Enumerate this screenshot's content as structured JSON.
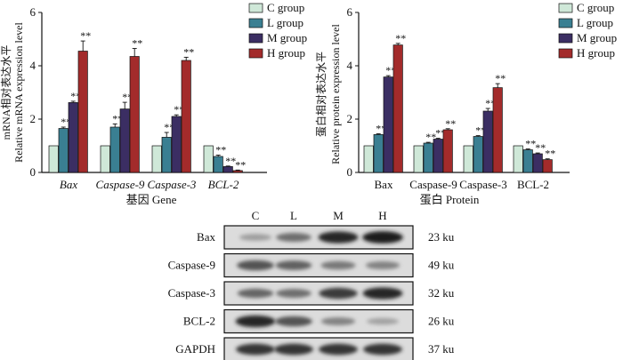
{
  "chart_data": [
    {
      "type": "bar",
      "ylabel_cn": "mRNA相对表达水平",
      "ylabel_en": "Relative mRNA expression level",
      "xlabel": "基因 Gene",
      "ylim": [
        0,
        6
      ],
      "yticks": [
        "0",
        "2",
        "4",
        "6"
      ],
      "categories": [
        "Bax",
        "Caspase-9",
        "Caspase-3",
        "BCL-2"
      ],
      "categories_italic": true,
      "series": [
        {
          "name": "C group",
          "values": [
            1.0,
            1.0,
            1.0,
            1.0
          ],
          "errors": [
            0,
            0,
            0,
            0
          ],
          "stars": [
            "",
            "",
            "",
            ""
          ]
        },
        {
          "name": "L group",
          "values": [
            1.65,
            1.7,
            1.32,
            0.6
          ],
          "errors": [
            0.05,
            0.12,
            0.18,
            0.05
          ],
          "stars": [
            "**",
            "**",
            "**",
            "**"
          ]
        },
        {
          "name": "M group",
          "values": [
            2.62,
            2.38,
            2.1,
            0.22
          ],
          "errors": [
            0.05,
            0.25,
            0.06,
            0.02
          ],
          "stars": [
            "**",
            "**",
            "**",
            "**"
          ]
        },
        {
          "name": "H group",
          "values": [
            4.55,
            4.35,
            4.2,
            0.07
          ],
          "errors": [
            0.38,
            0.3,
            0.12,
            0.02
          ],
          "stars": [
            "**",
            "**",
            "**",
            "**"
          ]
        }
      ]
    },
    {
      "type": "bar",
      "ylabel_cn": "蛋白相对表达水平",
      "ylabel_en": "Relative protein expression level",
      "xlabel": "蛋白 Protein",
      "ylim": [
        0,
        6
      ],
      "yticks": [
        "0",
        "2",
        "4",
        "6"
      ],
      "categories": [
        "Bax",
        "Caspase-9",
        "Caspase-3",
        "BCL-2"
      ],
      "categories_italic": false,
      "series": [
        {
          "name": "C group",
          "values": [
            1.0,
            1.0,
            1.0,
            1.0
          ],
          "errors": [
            0,
            0,
            0,
            0
          ],
          "stars": [
            "",
            "",
            "",
            ""
          ]
        },
        {
          "name": "L group",
          "values": [
            1.42,
            1.1,
            1.35,
            0.85
          ],
          "errors": [
            0.03,
            0.03,
            0.03,
            0.03
          ],
          "stars": [
            "**",
            "**",
            "**",
            "**"
          ]
        },
        {
          "name": "M group",
          "values": [
            3.58,
            1.25,
            2.3,
            0.7
          ],
          "errors": [
            0.05,
            0.03,
            0.1,
            0.03
          ],
          "stars": [
            "**",
            "**",
            "**",
            "**"
          ]
        },
        {
          "name": "H group",
          "values": [
            4.78,
            1.6,
            3.18,
            0.48
          ],
          "errors": [
            0.06,
            0.04,
            0.15,
            0.03
          ],
          "stars": [
            "**",
            "**",
            "**",
            "**"
          ]
        }
      ]
    }
  ],
  "series_colors": [
    "#cfe8d8",
    "#3a7f92",
    "#3b2e63",
    "#a32b2b"
  ],
  "blot": {
    "columns": [
      "C",
      "L",
      "M",
      "H"
    ],
    "rows": [
      {
        "name": "Bax",
        "size": "23 ku",
        "intensities": [
          0.3,
          0.55,
          0.92,
          0.98
        ]
      },
      {
        "name": "Caspase-9",
        "size": "49 ku",
        "intensities": [
          0.7,
          0.62,
          0.5,
          0.45
        ]
      },
      {
        "name": "Caspase-3",
        "size": "32 ku",
        "intensities": [
          0.6,
          0.55,
          0.82,
          0.92
        ]
      },
      {
        "name": "BCL-2",
        "size": "26 ku",
        "intensities": [
          0.92,
          0.7,
          0.45,
          0.28
        ]
      },
      {
        "name": "GAPDH",
        "size": "37 ku",
        "intensities": [
          0.85,
          0.85,
          0.85,
          0.85
        ]
      }
    ]
  }
}
